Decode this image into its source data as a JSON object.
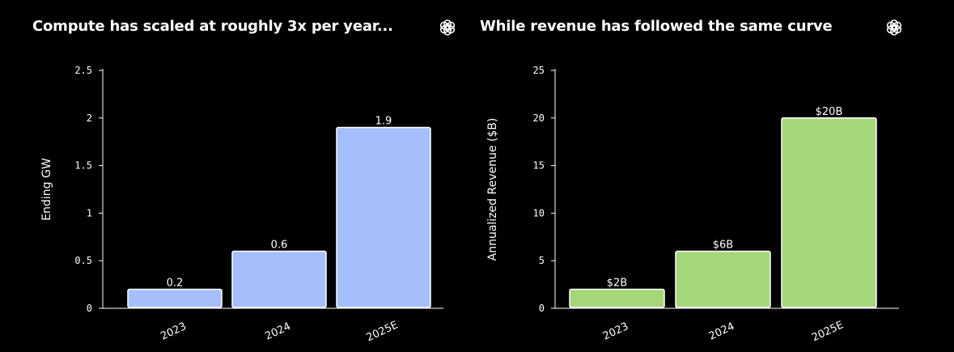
{
  "panels": [
    {
      "title": "Compute has scaled at roughly 3x per year...",
      "logo_icon": "openai-logo-icon"
    },
    {
      "title": "While revenue has followed the same curve",
      "logo_icon": "openai-logo-icon"
    }
  ],
  "chart_data": [
    {
      "type": "bar",
      "title": "Compute has scaled at roughly 3x per year...",
      "categories": [
        "2023",
        "2024",
        "2025E"
      ],
      "values": [
        0.2,
        0.6,
        1.9
      ],
      "data_labels": [
        "0.2",
        "0.6",
        "1.9"
      ],
      "xlabel": "",
      "ylabel": "Ending GW",
      "ylim": [
        0,
        2.5
      ],
      "yticks": [
        "0",
        "0.5",
        "1",
        "1.5",
        "2",
        "2.5"
      ],
      "ytick_values": [
        0,
        0.5,
        1,
        1.5,
        2,
        2.5
      ],
      "bar_color": "#a6bffc",
      "grid": false
    },
    {
      "type": "bar",
      "title": "While revenue has followed the same curve",
      "categories": [
        "2023",
        "2024",
        "2025E"
      ],
      "values": [
        2,
        6,
        20
      ],
      "data_labels": [
        "$2B",
        "$6B",
        "$20B"
      ],
      "xlabel": "",
      "ylabel": "Annualized Revenue ($B)",
      "ylim": [
        0,
        25
      ],
      "yticks": [
        "0",
        "5",
        "10",
        "15",
        "20",
        "25"
      ],
      "ytick_values": [
        0,
        5,
        10,
        15,
        20,
        25
      ],
      "bar_color": "#a5d67a",
      "grid": false
    }
  ]
}
